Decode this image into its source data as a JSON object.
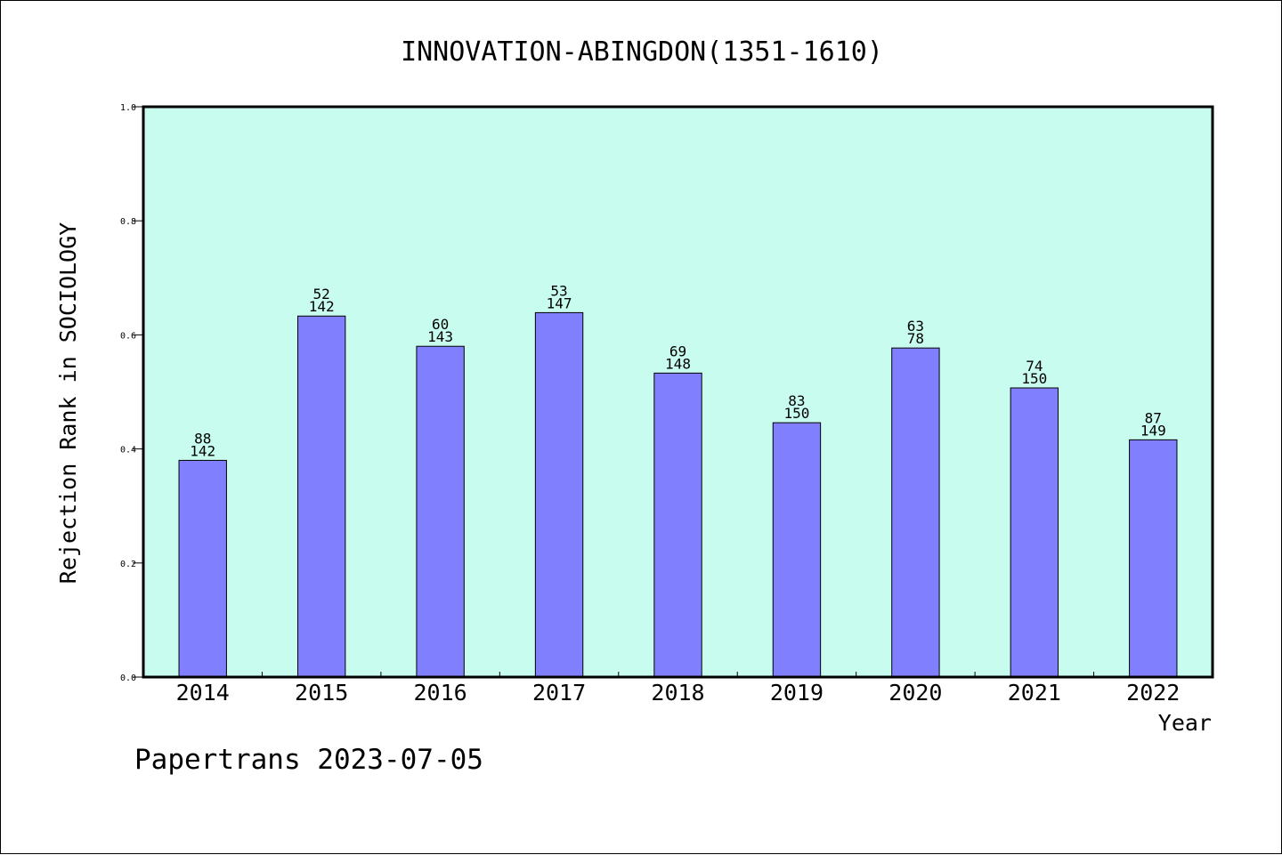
{
  "chart_data": {
    "type": "bar",
    "title": "INNOVATION-ABINGDON(1351-1610)",
    "xlabel": "Year",
    "ylabel": "Rejection Rank in SOCIOLOGY",
    "ylim": [
      0,
      1.0
    ],
    "yticks": [
      "0.0",
      "0.2",
      "0.4",
      "0.6",
      "0.8",
      "1.0"
    ],
    "categories": [
      "2014",
      "2015",
      "2016",
      "2017",
      "2018",
      "2019",
      "2020",
      "2021",
      "2022"
    ],
    "values": [
      0.38,
      0.633,
      0.58,
      0.639,
      0.533,
      0.446,
      0.577,
      0.507,
      0.416
    ],
    "label_top": [
      "88",
      "52",
      "60",
      "53",
      "69",
      "83",
      "63",
      "74",
      "87"
    ],
    "label_bottom": [
      "142",
      "142",
      "143",
      "147",
      "148",
      "150",
      "78",
      "150",
      "149"
    ],
    "colors": {
      "plot_background": "#c8fcee",
      "bar_fill": "#8080ff",
      "bar_stroke": "#000000"
    },
    "grid": false,
    "legend": "none"
  },
  "footer": {
    "credit": "Papertrans 2023-07-05"
  }
}
